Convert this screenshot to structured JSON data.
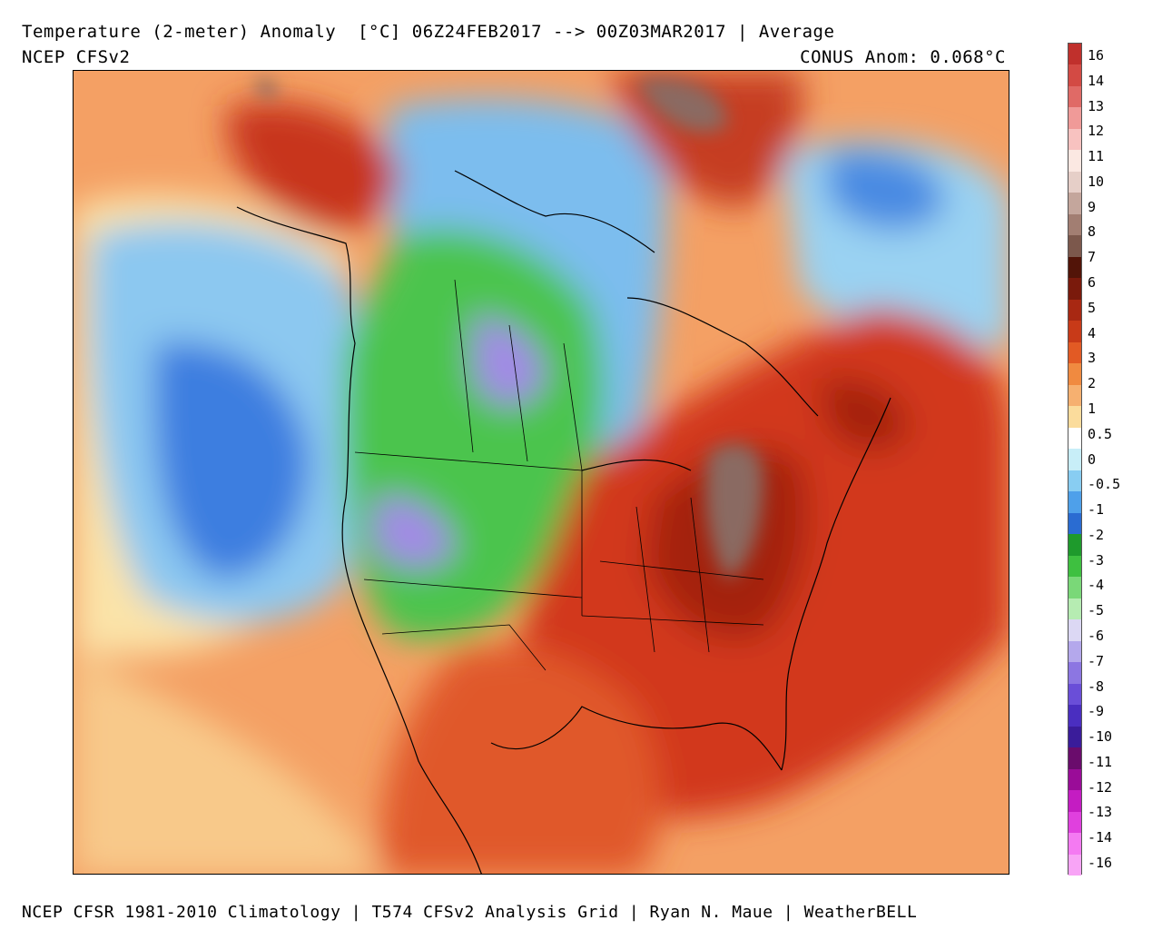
{
  "header": {
    "title": "Temperature (2-meter) Anomaly  [°C] 06Z24FEB2017 --> 00Z03MAR2017 | Average",
    "model": "NCEP CFSv2",
    "conus_anomaly": "CONUS Anom: 0.068°C"
  },
  "footer": {
    "credits": "NCEP CFSR 1981-2010 Climatology | T574 CFSv2 Analysis Grid | Ryan N. Maue | WeatherBELL"
  },
  "colors": {
    "ocean_warm": "#f6a766",
    "cold_blue": "#6aaeea",
    "deep_blue": "#2b6ad6",
    "green_land": "#46c64a",
    "purple_cold": "#9a82e6",
    "hot_red": "#d4331c",
    "dark_red": "#8e1508",
    "brown_peak": "#8a6b62"
  },
  "colorbar": {
    "labels": [
      "16",
      "14",
      "13",
      "12",
      "11",
      "10",
      "9",
      "8",
      "7",
      "6",
      "5",
      "4",
      "3",
      "2",
      "1",
      "0.5",
      "0",
      "-0.5",
      "-1",
      "-2",
      "-3",
      "-4",
      "-5",
      "-6",
      "-7",
      "-8",
      "-9",
      "-10",
      "-11",
      "-12",
      "-13",
      "-14",
      "-16"
    ],
    "colors": [
      "#c0302c",
      "#d34a44",
      "#e06a66",
      "#f09a98",
      "#f8c2c0",
      "#fbe8e2",
      "#e6cfc8",
      "#c4a69c",
      "#a27e72",
      "#7c584c",
      "#521408",
      "#7a1a0c",
      "#a82812",
      "#c83a18",
      "#e25a24",
      "#f08a40",
      "#f6b070",
      "#fbdc9c",
      "#ffffff",
      "#c8eef8",
      "#88cdf2",
      "#4ea0ea",
      "#2a6cd2",
      "#1e9a2c",
      "#3ec040",
      "#7ad878",
      "#b6ecb2",
      "#dcd8f4",
      "#b4a8ec",
      "#8c76e2",
      "#6a4ed8",
      "#4a2ec0",
      "#3a1c9a",
      "#6a0c6c",
      "#9a0c98",
      "#c41cc2",
      "#e040de",
      "#f47af2",
      "#f8a4f6"
    ]
  }
}
